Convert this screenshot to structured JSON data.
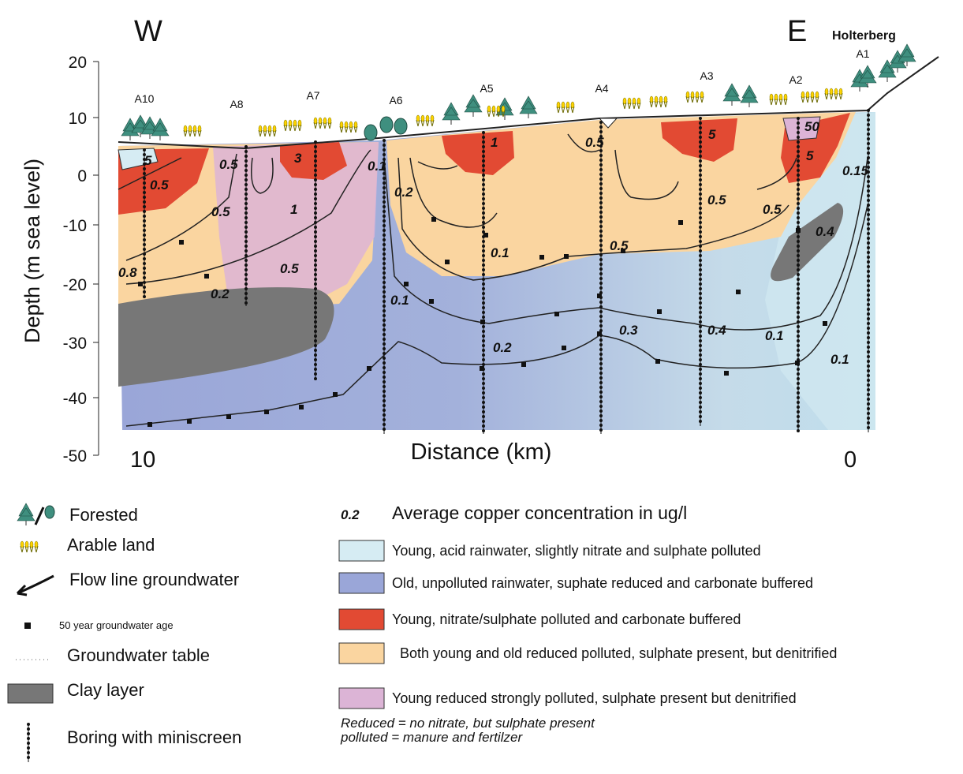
{
  "header": {
    "west": "W",
    "east": "E",
    "place": "Holterberg"
  },
  "y_axis": {
    "title": "Depth (m sea level)",
    "ticks": [
      "20",
      "10",
      "0",
      "-10",
      "-20",
      "-30",
      "-40",
      "-50"
    ]
  },
  "x_axis": {
    "title": "Distance (km)",
    "ticks": [
      "10",
      "0"
    ]
  },
  "borings": [
    "A10",
    "A8",
    "A7",
    "A6",
    "A5",
    "A4",
    "A3",
    "A2",
    "A1"
  ],
  "concentrations": [
    "5",
    "0.5",
    "0.5",
    "3",
    "0.5",
    "1",
    "0.8",
    "0.5",
    "0.2",
    "0.1",
    "0.2",
    "1",
    "0.1",
    "0.1",
    "0.2",
    "0.5",
    "0.5",
    "0.3",
    "5",
    "0.5",
    "0.4",
    "0.5",
    "50",
    "5",
    "0.15",
    "0.4",
    "0.1",
    "0.1"
  ],
  "legend_left": [
    "Forested",
    "Arable land",
    "Flow line groundwater",
    "50 year groundwater age",
    "Groundwater table",
    "Clay layer",
    "Boring with miniscreen"
  ],
  "legend_right": {
    "example_value": "0.2",
    "example_text": "Average copper  concentration in ug/l",
    "zones": [
      "Young, acid rainwater, slightly nitrate and sulphate polluted",
      "Old, unpolluted rainwater, suphate reduced and carbonate buffered",
      "Young, nitrate/sulphate polluted and carbonate buffered",
      "Both young and old reduced polluted, sulphate present, but denitrified",
      "Young reduced strongly polluted, sulphate present but denitrified"
    ]
  },
  "notes": [
    "Reduced = no nitrate, but sulphate present",
    "polluted = manure and fertilzer"
  ]
}
